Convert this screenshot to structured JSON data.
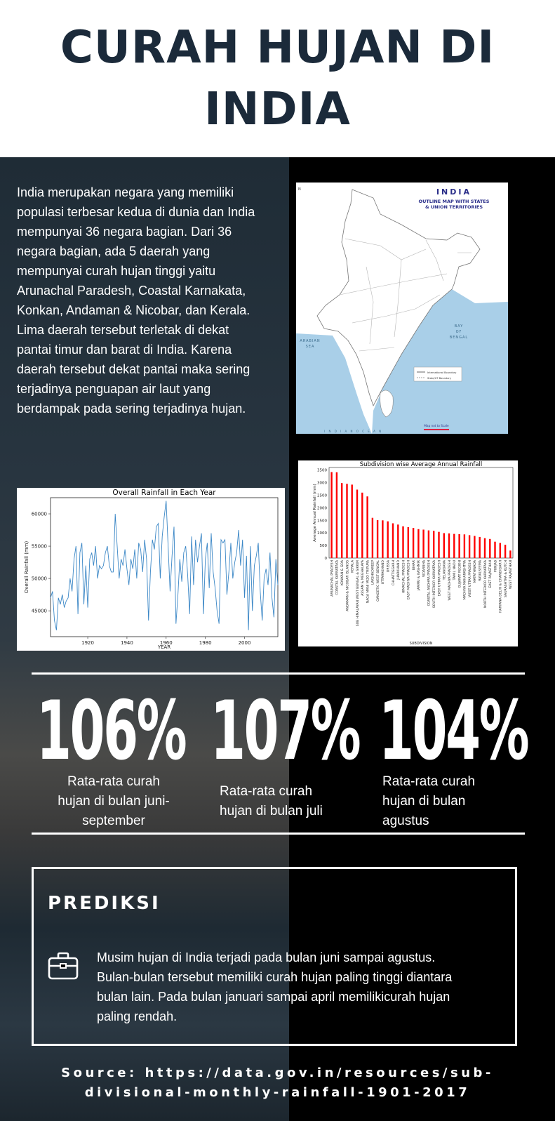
{
  "title": "CURAH HUJAN DI INDIA",
  "intro": "India merupakan negara yang memiliki populasi terbesar kedua di dunia dan India mempunyai 36 negara bagian.  Dari 36 negara bagian, ada 5 daerah yang mempunyai curah hujan tinggi yaitu Arunachal Paradesh, Coastal Karnakata, Konkan, Andaman & Nicobar, dan Kerala. Lima daerah tersebut terletak di dekat pantai timur dan barat di India. Karena daerah tersebut dekat pantai maka sering terjadinya penguapan air laut yang berdampak pada sering terjadinya hujan.",
  "map": {
    "title": "INDIA",
    "subtitle_1": "OUTLINE MAP WITH STATES",
    "subtitle_2": "& UNION TERRITORIES",
    "sea_left_1": "ARABIAN",
    "sea_left_2": "SEA",
    "sea_right_1": "BAY",
    "sea_right_2": "OF",
    "sea_right_3": "BENGAL",
    "legend_1": "International Boundary",
    "legend_2": "State/UT Boundary",
    "scale_note": "Map not to Scale",
    "ocean": "I N D I A N   O C E A N",
    "colors": {
      "sea": "#a9cfe8",
      "land": "#ffffff",
      "title": "#2b2f8a"
    }
  },
  "chart_data": [
    {
      "type": "line",
      "title": "Overall Rainfall in Each Year",
      "xlabel": "YEAR",
      "ylabel": "Overall Rainfall (mm)",
      "xlim": [
        1901,
        2017
      ],
      "ylim": [
        41000,
        62500
      ],
      "xticks": [
        1920,
        1940,
        1960,
        1980,
        2000
      ],
      "yticks": [
        45000,
        50000,
        55000,
        60000
      ],
      "x": [
        1901,
        1902,
        1903,
        1904,
        1905,
        1906,
        1907,
        1908,
        1909,
        1910,
        1911,
        1912,
        1913,
        1914,
        1915,
        1916,
        1917,
        1918,
        1919,
        1920,
        1921,
        1922,
        1923,
        1924,
        1925,
        1926,
        1927,
        1928,
        1929,
        1930,
        1931,
        1932,
        1933,
        1934,
        1935,
        1936,
        1937,
        1938,
        1939,
        1940,
        1941,
        1942,
        1943,
        1944,
        1945,
        1946,
        1947,
        1948,
        1949,
        1950,
        1951,
        1952,
        1953,
        1954,
        1955,
        1956,
        1957,
        1958,
        1959,
        1960,
        1961,
        1962,
        1963,
        1964,
        1965,
        1966,
        1967,
        1968,
        1969,
        1970,
        1971,
        1972,
        1973,
        1974,
        1975,
        1976,
        1977,
        1978,
        1979,
        1980,
        1981,
        1982,
        1983,
        1984,
        1985,
        1986,
        1987,
        1988,
        1989,
        1990,
        1991,
        1992,
        1993,
        1994,
        1995,
        1996,
        1997,
        1998,
        1999,
        2000,
        2001,
        2002,
        2003,
        2004,
        2005,
        2006,
        2007,
        2008,
        2009,
        2010,
        2011,
        2012,
        2013,
        2014,
        2015,
        2016,
        2017
      ],
      "y": [
        47000,
        48000,
        43500,
        42000,
        47000,
        46000,
        47500,
        45500,
        46500,
        47000,
        50000,
        48000,
        53000,
        55000,
        44500,
        54000,
        55500,
        46000,
        52000,
        45500,
        53000,
        54000,
        52000,
        55000,
        50000,
        52000,
        51500,
        52000,
        54000,
        55000,
        52000,
        51000,
        51000,
        60000,
        55000,
        50000,
        53000,
        52000,
        54500,
        51500,
        49000,
        53000,
        51500,
        54500,
        50000,
        55500,
        54500,
        51000,
        56000,
        53000,
        43500,
        51000,
        56000,
        54500,
        58000,
        58500,
        50000,
        56500,
        59500,
        62000,
        55000,
        48000,
        53500,
        58000,
        43000,
        47500,
        53000,
        49500,
        54000,
        55000,
        50500,
        44500,
        56500,
        49000,
        56000,
        52500,
        55000,
        57000,
        44500,
        53000,
        55500,
        48500,
        57000,
        51000,
        48500,
        45000,
        43000,
        56000,
        55500,
        56000,
        47500,
        51000,
        55500,
        50000,
        52500,
        54000,
        57500,
        52000,
        56000,
        47000,
        53500,
        42000,
        55000,
        45000,
        52000,
        53500,
        55500,
        48000,
        43500,
        50000,
        51500,
        49000,
        54000,
        47000,
        44000,
        53000,
        49000
      ],
      "color": "#3b87c6"
    },
    {
      "type": "bar",
      "title": "Subdivision wise Average Annual Rainfall",
      "xlabel": "SUBDIVISION",
      "ylabel": "Average Annual Rainfall (mm)",
      "ylim": [
        0,
        3600
      ],
      "yticks": [
        0,
        500,
        1000,
        1500,
        2000,
        2500,
        3000,
        3500
      ],
      "categories": [
        "ARUNACHAL PRADESH",
        "COASTAL KARNATAKA",
        "KONKAN & GOA",
        "ANDAMAN & NICOBAR ISLANDS",
        "KERALA",
        "SUB HIMALAYAN WEST BENGAL & SIKKIM",
        "ASSAM & MEGHALAYA",
        "NAGA MANI MIZO TRIPURA",
        "LAKSHADWEEP",
        "GANGETIC WEST BENGAL",
        "UTTARAKHAND",
        "ORISSA",
        "CHHATTISGARH",
        "JHARKHAND",
        "HIMACHAL PRADESH",
        "EAST MADHYA PRADESH",
        "BIHAR",
        "JAMMU & KASHMIR",
        "VIDARBHA",
        "COASTAL ANDHRA PRADESH",
        "SOUTH INTERIOR KARNATAKA",
        "EAST UTTAR PRADESH",
        "TELANGANA",
        "WEST MADHYA PRADESH",
        "TAMIL NADU",
        "GUJARAT REGION",
        "MADHYA MAHARASHTRA",
        "WEST UTTAR PRADESH",
        "MATATHWADA",
        "RAYALSEEMA",
        "NORTH INTERIOR KARNATAKA",
        "EAST RAJASTHAN",
        "PUNJAB",
        "HARYANA DELHI & CHANDIGARH",
        "SAURASHTRA & KUTCH",
        "WEST RAJASTHAN"
      ],
      "values": [
        3420,
        3410,
        2980,
        2950,
        2920,
        2720,
        2600,
        2450,
        1600,
        1510,
        1500,
        1460,
        1380,
        1330,
        1260,
        1230,
        1200,
        1150,
        1130,
        1100,
        1080,
        1040,
        990,
        980,
        960,
        950,
        940,
        910,
        880,
        840,
        790,
        760,
        650,
        600,
        530,
        300
      ],
      "color": "#ff0000"
    }
  ],
  "stats": [
    {
      "value": "106%",
      "label_lines": [
        "Rata-rata curah",
        "hujan di bulan juni-",
        "september"
      ]
    },
    {
      "value": "107%",
      "label_lines": [
        "Rata-rata curah",
        "hujan di bulan juli"
      ]
    },
    {
      "value": "104%",
      "label_lines": [
        "Rata-rata curah",
        "hujan di bulan",
        "agustus"
      ]
    }
  ],
  "prediction": {
    "title": "PREDIKSI",
    "icon": "briefcase-icon",
    "text": "Musim hujan di India terjadi pada bulan juni sampai agustus. Bulan-bulan tersebut memiliki curah hujan paling tinggi diantara bulan lain. Pada bulan januari sampai april memilikicurah hujan paling rendah."
  },
  "source": "Source: https://data.gov.in/resources/sub-divisional-monthly-rainfall-1901-2017"
}
